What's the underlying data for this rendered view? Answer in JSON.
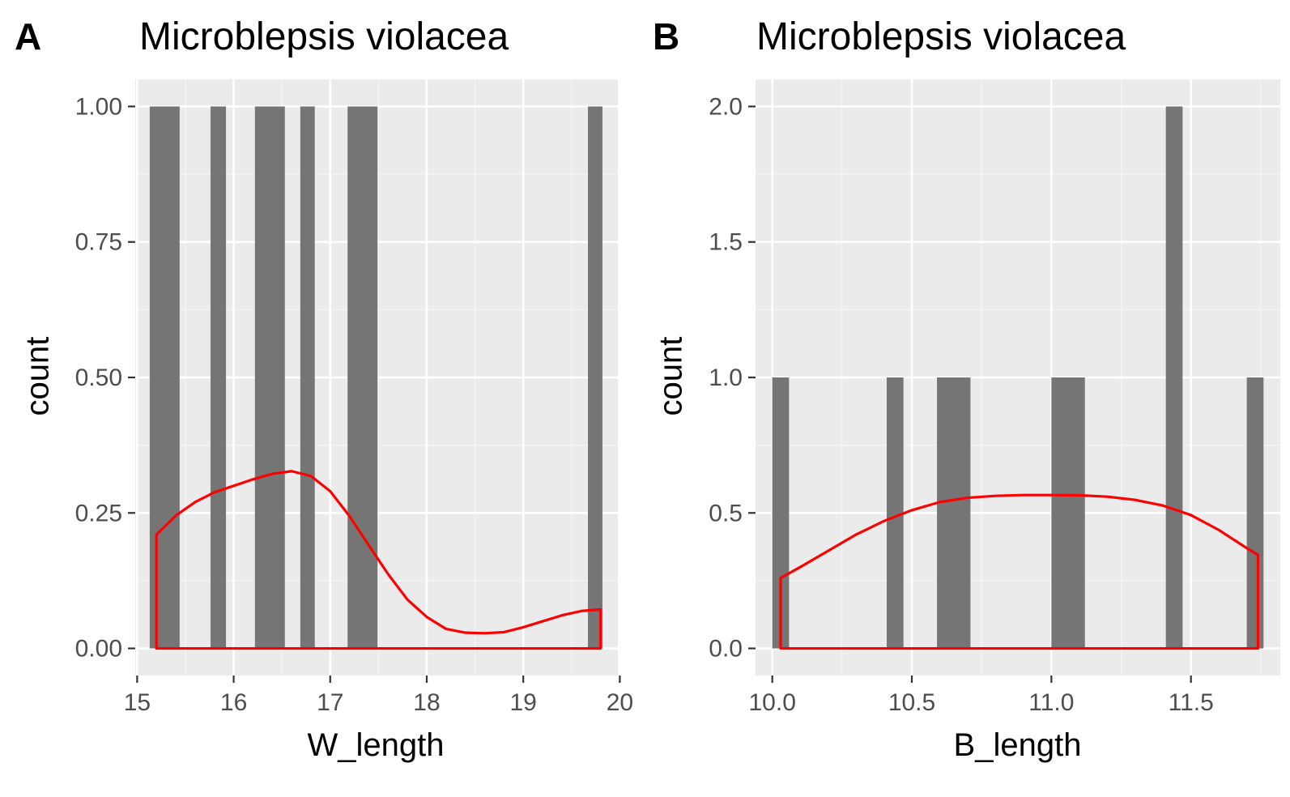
{
  "panels": [
    {
      "letter": "A",
      "title": "Microblepsis violacea"
    },
    {
      "letter": "B",
      "title": "Microblepsis violacea"
    }
  ],
  "colors": {
    "panel_background": "#ebebeb",
    "grid_major": "#ffffff",
    "grid_minor": "#f5f5f5",
    "bar_fill": "#757575",
    "density_line": "#ff0000",
    "tick_text": "#4d4d4d"
  },
  "chart_data": [
    {
      "type": "bar",
      "title": "Microblepsis violacea",
      "xlabel": "W_length",
      "ylabel": "count",
      "xlim": [
        14.98,
        19.98
      ],
      "ylim": [
        -0.05,
        1.05
      ],
      "xticks": [
        15,
        16,
        17,
        18,
        19,
        20
      ],
      "xtick_labels": [
        "15",
        "16",
        "17",
        "18",
        "19",
        "20"
      ],
      "yticks": [
        0,
        0.25,
        0.5,
        0.75,
        1.0
      ],
      "ytick_labels": [
        "0.00",
        "0.25",
        "0.50",
        "0.75",
        "1.00"
      ],
      "grid": true,
      "bars": [
        {
          "x0": 15.13,
          "x1": 15.44,
          "count": 1
        },
        {
          "x0": 15.76,
          "x1": 15.92,
          "count": 1
        },
        {
          "x0": 16.22,
          "x1": 16.53,
          "count": 1
        },
        {
          "x0": 16.69,
          "x1": 16.84,
          "count": 1
        },
        {
          "x0": 17.18,
          "x1": 17.49,
          "count": 1
        },
        {
          "x0": 19.67,
          "x1": 19.82,
          "count": 1
        }
      ],
      "density": {
        "x": [
          15.2,
          15.4,
          15.6,
          15.8,
          16.0,
          16.2,
          16.4,
          16.6,
          16.8,
          17.0,
          17.2,
          17.4,
          17.6,
          17.8,
          18.0,
          18.2,
          18.4,
          18.6,
          18.8,
          19.0,
          19.2,
          19.4,
          19.6,
          19.8
        ],
        "y": [
          0.21,
          0.245,
          0.27,
          0.288,
          0.3,
          0.312,
          0.322,
          0.327,
          0.318,
          0.29,
          0.244,
          0.19,
          0.137,
          0.09,
          0.058,
          0.036,
          0.029,
          0.028,
          0.03,
          0.039,
          0.05,
          0.061,
          0.069,
          0.072
        ]
      }
    },
    {
      "type": "bar",
      "title": "Microblepsis violacea",
      "xlabel": "B_length",
      "ylabel": "count",
      "xlim": [
        9.94,
        11.82
      ],
      "ylim": [
        -0.1,
        2.1
      ],
      "xticks": [
        10.0,
        10.5,
        11.0,
        11.5
      ],
      "xtick_labels": [
        "10.0",
        "10.5",
        "11.0",
        "11.5"
      ],
      "yticks": [
        0,
        0.5,
        1.0,
        1.5,
        2.0
      ],
      "ytick_labels": [
        "0.0",
        "0.5",
        "1.0",
        "1.5",
        "2.0"
      ],
      "grid": true,
      "bars": [
        {
          "x0": 10.0,
          "x1": 10.06,
          "count": 1
        },
        {
          "x0": 10.41,
          "x1": 10.47,
          "count": 1
        },
        {
          "x0": 10.59,
          "x1": 10.71,
          "count": 1
        },
        {
          "x0": 11.0,
          "x1": 11.12,
          "count": 1
        },
        {
          "x0": 11.41,
          "x1": 11.47,
          "count": 2
        },
        {
          "x0": 11.7,
          "x1": 11.76,
          "count": 1
        }
      ],
      "density": {
        "x": [
          10.03,
          10.1,
          10.2,
          10.3,
          10.4,
          10.5,
          10.6,
          10.7,
          10.8,
          10.9,
          11.0,
          11.1,
          11.2,
          11.3,
          11.4,
          11.5,
          11.6,
          11.7,
          11.74
        ],
        "y": [
          0.26,
          0.3,
          0.36,
          0.42,
          0.47,
          0.51,
          0.54,
          0.556,
          0.563,
          0.566,
          0.566,
          0.565,
          0.56,
          0.548,
          0.527,
          0.492,
          0.437,
          0.37,
          0.345
        ]
      }
    }
  ]
}
